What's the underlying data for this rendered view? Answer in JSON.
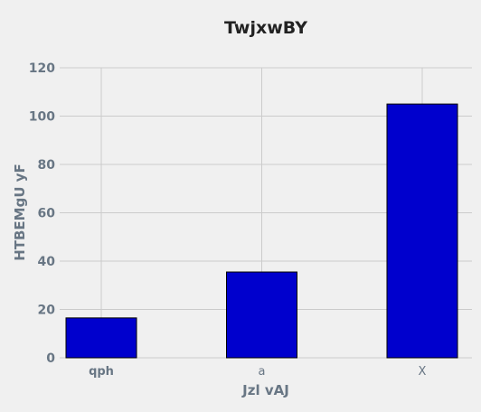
{
  "chart_data": {
    "type": "bar",
    "title": "TwjxwBY",
    "xlabel": "Jzl vAJ",
    "ylabel": "HTBEMgU yF",
    "categories": [
      "qph",
      "a",
      "X"
    ],
    "values": [
      16.5,
      35.5,
      105
    ],
    "ylim": [
      0,
      120
    ],
    "yticks": [
      0,
      20,
      40,
      60,
      80,
      100,
      120
    ],
    "grid": true,
    "bar_color": "#0000cd",
    "edge_color": "#000000",
    "background_color": "#f0f0f0"
  }
}
